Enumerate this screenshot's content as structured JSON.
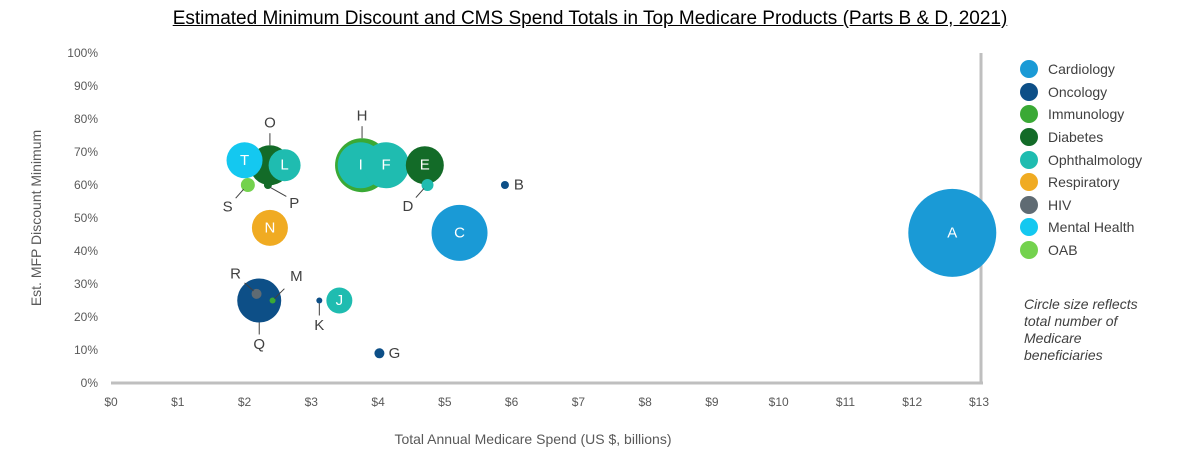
{
  "chart_data": {
    "type": "scatter",
    "title": "Estimated Minimum Discount and CMS Spend Totals in Top Medicare Products (Parts B & D, 2021)",
    "xlabel": "Total Annual Medicare Spend (US $, billions)",
    "ylabel": "Est. MFP Discount Minimum",
    "xlim": [
      0,
      13
    ],
    "ylim": [
      0,
      1
    ],
    "x_ticks": [
      "$0",
      "$1",
      "$2",
      "$3",
      "$4",
      "$5",
      "$6",
      "$7",
      "$8",
      "$9",
      "$10",
      "$11",
      "$12",
      "$13"
    ],
    "y_ticks": [
      "0%",
      "10%",
      "20%",
      "30%",
      "40%",
      "50%",
      "60%",
      "70%",
      "80%",
      "90%",
      "100%"
    ],
    "grid": false,
    "legend_position": "right",
    "size_note": "Circle size reflects total number of Medicare beneficiaries",
    "categories": [
      {
        "name": "Cardiology",
        "color": "#1a9ad6"
      },
      {
        "name": "Oncology",
        "color": "#0d4f87"
      },
      {
        "name": "Immunology",
        "color": "#3aa935"
      },
      {
        "name": "Diabetes",
        "color": "#136b28"
      },
      {
        "name": "Ophthalmology",
        "color": "#1fbcb0"
      },
      {
        "name": "Respiratory",
        "color": "#f0ab22"
      },
      {
        "name": "HIV",
        "color": "#5f6b73"
      },
      {
        "name": "Mental Health",
        "color": "#14c8f0"
      },
      {
        "name": "OAB",
        "color": "#74d24e"
      }
    ],
    "points": [
      {
        "label": "A",
        "category": "Cardiology",
        "x": 12.6,
        "y": 0.455,
        "size": 44,
        "label_pos": "inside"
      },
      {
        "label": "C",
        "category": "Cardiology",
        "x": 5.22,
        "y": 0.455,
        "size": 28,
        "label_pos": "inside"
      },
      {
        "label": "B",
        "category": "Oncology",
        "x": 5.9,
        "y": 0.6,
        "size": 4,
        "label_pos": "right"
      },
      {
        "label": "G",
        "category": "Oncology",
        "x": 4.02,
        "y": 0.09,
        "size": 5,
        "label_pos": "right"
      },
      {
        "label": "K",
        "category": "Oncology",
        "x": 3.12,
        "y": 0.25,
        "size": 3,
        "label_pos": "below"
      },
      {
        "label": "Q",
        "category": "Oncology",
        "x": 2.22,
        "y": 0.25,
        "size": 22,
        "label_pos": "below"
      },
      {
        "label": "R",
        "category": "HIV",
        "x": 2.18,
        "y": 0.27,
        "size": 5,
        "label_pos": "upper-left"
      },
      {
        "label": "M",
        "category": "Immunology",
        "x": 2.42,
        "y": 0.25,
        "size": 3,
        "label_pos": "upper-right"
      },
      {
        "label": "J",
        "category": "Ophthalmology",
        "x": 3.42,
        "y": 0.25,
        "size": 13,
        "label_pos": "inside"
      },
      {
        "label": "H",
        "category": "Immunology",
        "x": 3.76,
        "y": 0.66,
        "size": 27,
        "label_pos": "above"
      },
      {
        "label": "I",
        "category": "Ophthalmology",
        "x": 3.74,
        "y": 0.66,
        "size": 23,
        "label_pos": "inside"
      },
      {
        "label": "F",
        "category": "Ophthalmology",
        "x": 4.12,
        "y": 0.66,
        "size": 23,
        "label_pos": "inside"
      },
      {
        "label": "E",
        "category": "Diabetes",
        "x": 4.7,
        "y": 0.66,
        "size": 19,
        "label_pos": "inside"
      },
      {
        "label": "D",
        "category": "Ophthalmology",
        "x": 4.74,
        "y": 0.6,
        "size": 6,
        "label_pos": "lower-left"
      },
      {
        "label": "O",
        "category": "Diabetes",
        "x": 2.38,
        "y": 0.66,
        "size": 20,
        "label_pos": "above"
      },
      {
        "label": "L",
        "category": "Ophthalmology",
        "x": 2.6,
        "y": 0.66,
        "size": 16,
        "label_pos": "inside"
      },
      {
        "label": "T",
        "category": "Mental Health",
        "x": 2.0,
        "y": 0.675,
        "size": 18,
        "label_pos": "inside"
      },
      {
        "label": "S",
        "category": "OAB",
        "x": 2.05,
        "y": 0.6,
        "size": 7,
        "label_pos": "lower-left"
      },
      {
        "label": "P",
        "category": "Diabetes",
        "x": 2.35,
        "y": 0.6,
        "size": 4,
        "label_pos": "lower-right"
      },
      {
        "label": "N",
        "category": "Respiratory",
        "x": 2.38,
        "y": 0.47,
        "size": 18,
        "label_pos": "inside"
      }
    ]
  }
}
